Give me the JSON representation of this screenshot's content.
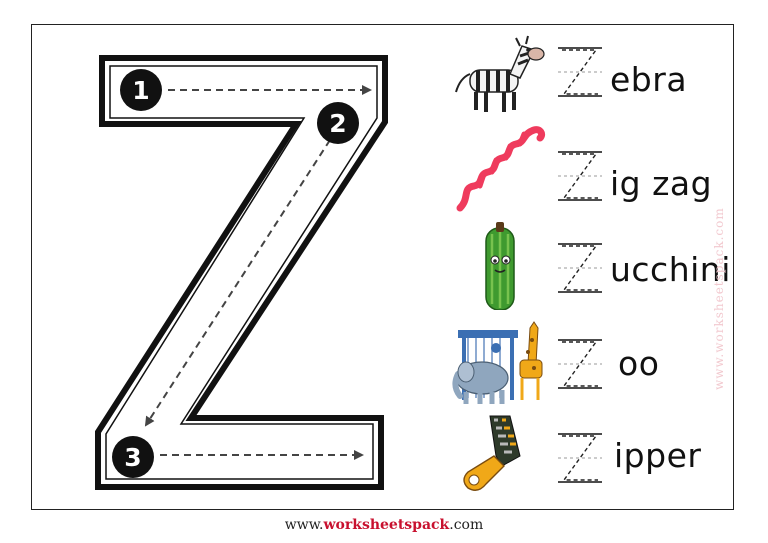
{
  "tracer": {
    "steps": [
      "1",
      "2",
      "3"
    ]
  },
  "rows": [
    {
      "word": "ebra",
      "picture": "zebra-icon"
    },
    {
      "word": "ig zag",
      "picture": "zigzag-icon"
    },
    {
      "word": "ucchini",
      "picture": "zucchini-icon"
    },
    {
      "word": "oo",
      "picture": "zoo-icon"
    },
    {
      "word": "ipper",
      "picture": "zipper-icon"
    }
  ],
  "watermark": "www.worksheetspack.com",
  "footer": {
    "prefix": "www.",
    "brand": "worksheetspack",
    "suffix": ".com"
  },
  "colors": {
    "zigzag": "#ef3b5d",
    "zucchini": "#3f9a2f",
    "zipper": "#f0a818",
    "brand": "#c8102e"
  }
}
